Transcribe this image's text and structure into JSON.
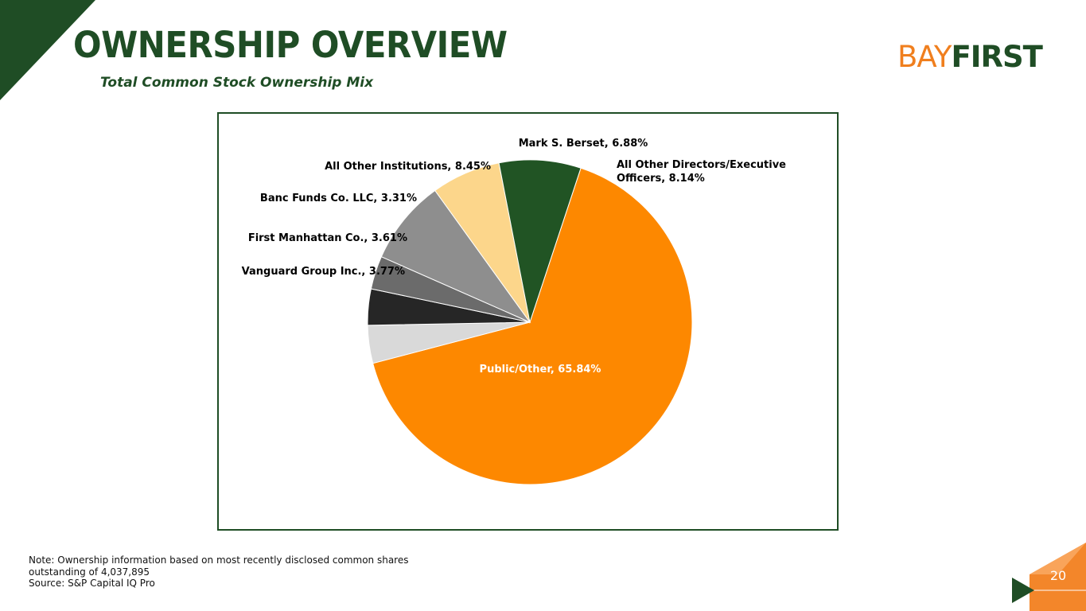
{
  "header": {
    "title": "OWNERSHIP OVERVIEW",
    "subtitle": "Total Common Stock Ownership Mix"
  },
  "logo": {
    "part1": "BAY",
    "part2": "FIRST"
  },
  "colors": {
    "brand_green": "#1f4d25",
    "brand_orange": "#f07f1e",
    "slice_public": "#fd8800",
    "slice_directors": "#215424",
    "slice_berset": "#fcd68b",
    "slice_institutions": "#8e8e8e",
    "slice_banc": "#6b6b6b",
    "slice_manhattan": "#262626",
    "slice_vanguard": "#d9d9d9"
  },
  "chart_data": {
    "type": "pie",
    "title": "",
    "slices": [
      {
        "label": "Public/Other, 65.84%",
        "name": "Public/Other",
        "value": 65.84,
        "color": "#fd8800",
        "label_color": "#ffffff",
        "label_position": "inside"
      },
      {
        "label": "Vanguard Group Inc., 3.77%",
        "name": "Vanguard Group Inc.",
        "value": 3.77,
        "color": "#d9d9d9",
        "label_color": "#000000",
        "label_position": "outside-left"
      },
      {
        "label": "First Manhattan Co., 3.61%",
        "name": "First Manhattan Co.",
        "value": 3.61,
        "color": "#262626",
        "label_color": "#000000",
        "label_position": "outside-left"
      },
      {
        "label": "Banc Funds Co. LLC, 3.31%",
        "name": "Banc Funds Co. LLC",
        "value": 3.31,
        "color": "#6b6b6b",
        "label_color": "#000000",
        "label_position": "outside-left"
      },
      {
        "label": "All Other Institutions, 8.45%",
        "name": "All Other Institutions",
        "value": 8.45,
        "color": "#8e8e8e",
        "label_color": "#000000",
        "label_position": "outside-left"
      },
      {
        "label": "Mark S. Berset, 6.88%",
        "name": "Mark S. Berset",
        "value": 6.88,
        "color": "#fcd68b",
        "label_color": "#000000",
        "label_position": "outside-top"
      },
      {
        "label": "All Other Directors/Executive Officers, 8.14%",
        "name": "All Other Directors/Executive Officers",
        "value": 8.14,
        "color": "#215424",
        "label_color": "#000000",
        "label_position": "outside-right"
      }
    ]
  },
  "note": {
    "line1": "Note: Ownership information based on most recently disclosed common shares",
    "line2": "outstanding of 4,037,895",
    "line3": "Source: S&P Capital IQ Pro"
  },
  "page_number": "20"
}
